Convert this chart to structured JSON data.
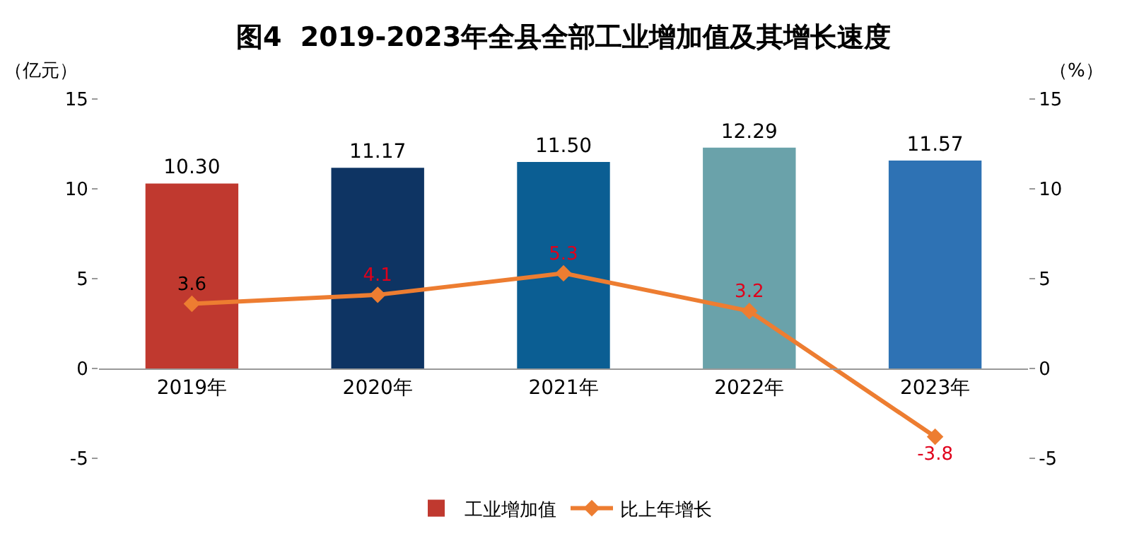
{
  "chart_data": {
    "type": "bar",
    "title": "图4  2019-2023年全县全部工业增加值及其增长速度",
    "ylabel": "（亿元）",
    "y2label": "（%）",
    "categories": [
      "2019年",
      "2020年",
      "2021年",
      "2022年",
      "2023年"
    ],
    "series": [
      {
        "name": "工业增加值",
        "colors": [
          "#c0392f",
          "#0e3463",
          "#0b5e93",
          "#6aa2aa",
          "#2e72b4"
        ],
        "values": [
          10.3,
          11.17,
          11.5,
          12.29,
          11.57
        ],
        "value_labels": [
          "10.30",
          "11.17",
          "11.50",
          "12.29",
          "11.57"
        ]
      },
      {
        "name": "比上年增长",
        "type": "line",
        "axis": "y2",
        "color": "#ed7d31",
        "values": [
          3.6,
          4.1,
          5.3,
          3.2,
          -3.8
        ],
        "value_labels": [
          "3.6",
          "4.1",
          "5.3",
          "3.2",
          "-3.8"
        ]
      }
    ],
    "ylim": [
      -5,
      15
    ],
    "yticks": [
      -5,
      0,
      5,
      10,
      15
    ],
    "y2lim": [
      -5,
      15
    ],
    "y2ticks": [
      -5,
      0,
      5,
      10,
      15
    ],
    "marker": "diamond",
    "line_style": "solid",
    "grid": false,
    "legend": "bottom"
  }
}
